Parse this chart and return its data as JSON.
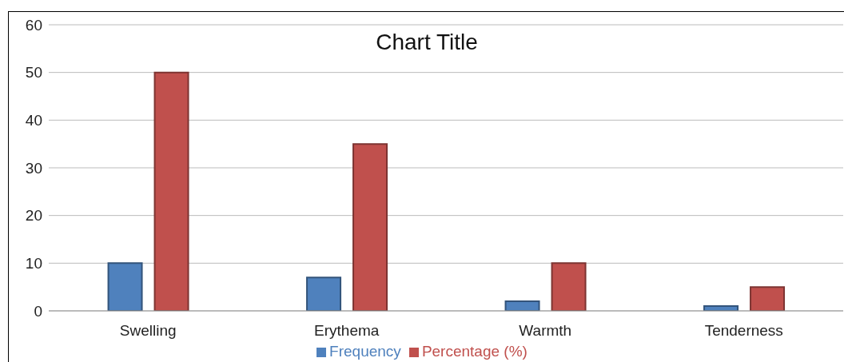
{
  "chart_data": {
    "type": "bar",
    "title": "Chart Title",
    "categories": [
      "Swelling",
      "Erythema",
      "Warmth",
      "Tenderness"
    ],
    "series": [
      {
        "name": "Frequency",
        "color": "#4f81bd",
        "values": [
          10,
          7,
          2,
          1
        ]
      },
      {
        "name": "Percentage (%)",
        "color": "#c0504d",
        "values": [
          50,
          35,
          10,
          5
        ]
      }
    ],
    "ylim": [
      0,
      60
    ],
    "yticks": [
      0,
      10,
      20,
      30,
      40,
      50,
      60
    ],
    "grid": "y",
    "legend": "bottom"
  }
}
